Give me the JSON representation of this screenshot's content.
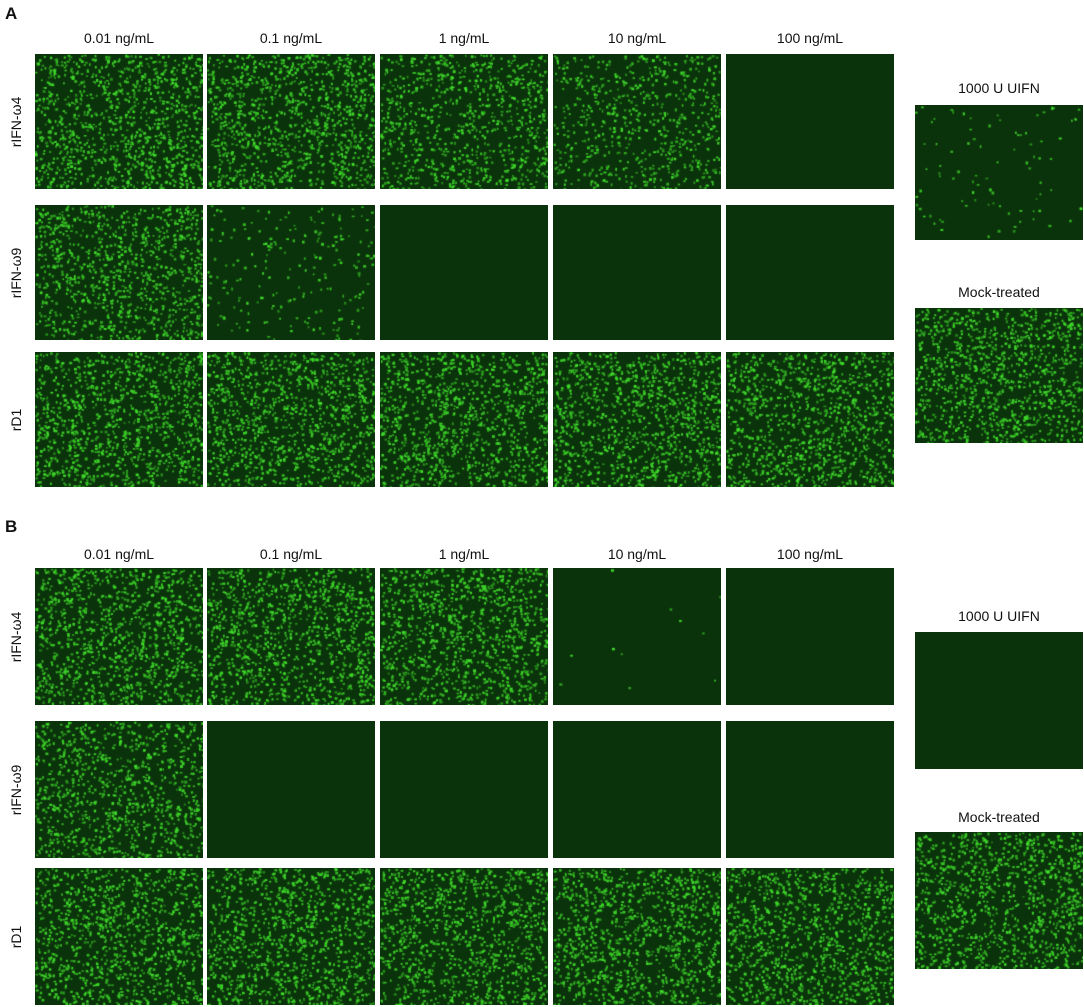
{
  "panels": [
    {
      "label": "A",
      "columns": [
        "0.01 ng/mL",
        "0.1 ng/mL",
        "1 ng/mL",
        "10 ng/mL",
        "100 ng/mL"
      ],
      "rows": [
        {
          "label": "rIFN-ω4",
          "signal": [
            1.0,
            1.0,
            0.8,
            0.6,
            0.0
          ]
        },
        {
          "label": "rIFN-ω9",
          "signal": [
            0.9,
            0.2,
            0.0,
            0.0,
            0.0
          ]
        },
        {
          "label": "rD1",
          "signal": [
            1.0,
            1.0,
            1.0,
            1.0,
            1.0
          ]
        }
      ],
      "controls": [
        {
          "label": "1000 U UIFN",
          "signal": 0.08
        },
        {
          "label": "Mock-treated",
          "signal": 1.0
        }
      ]
    },
    {
      "label": "B",
      "columns": [
        "0.01 ng/mL",
        "0.1 ng/mL",
        "1 ng/mL",
        "10 ng/mL",
        "100 ng/mL"
      ],
      "rows": [
        {
          "label": "rIFN-ω4",
          "signal": [
            1.0,
            1.0,
            1.0,
            0.01,
            0.0
          ]
        },
        {
          "label": "rIFN-ω9",
          "signal": [
            0.9,
            0.0,
            0.0,
            0.0,
            0.0
          ]
        },
        {
          "label": "rD1",
          "signal": [
            1.0,
            1.0,
            1.0,
            1.0,
            1.0
          ]
        }
      ],
      "controls": [
        {
          "label": "1000 U UIFN",
          "signal": 0.0
        },
        {
          "label": "Mock-treated",
          "signal": 1.0
        }
      ]
    }
  ],
  "colors": {
    "background": "#0b330b",
    "cell": "#3fdc2a"
  }
}
